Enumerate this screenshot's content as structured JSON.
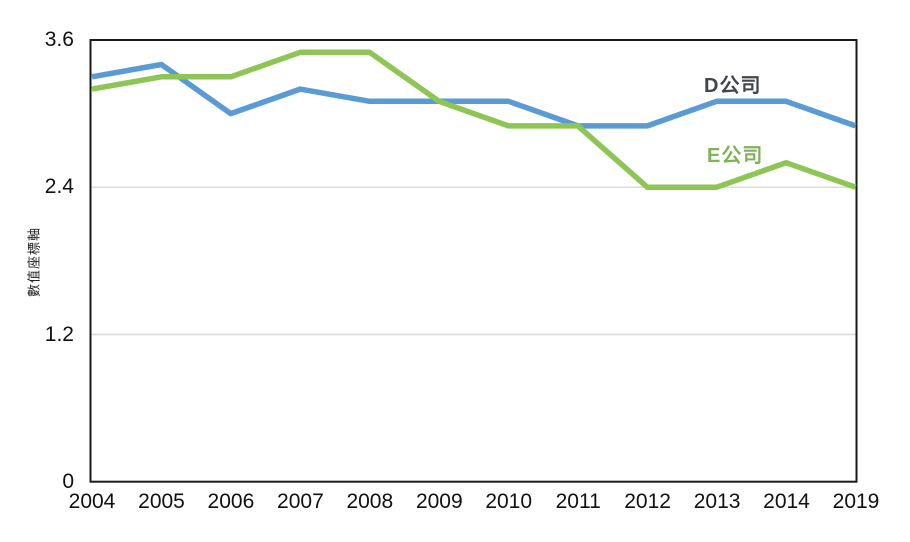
{
  "chart_data": {
    "type": "line",
    "title": "",
    "xlabel": "",
    "ylabel": "數值座標軸",
    "categories": [
      "2004",
      "2005",
      "2006",
      "2007",
      "2008",
      "2009",
      "2010",
      "2011",
      "2012",
      "2013",
      "2014",
      "2019"
    ],
    "series": [
      {
        "name": "D公司",
        "color": "#5A9BD6",
        "label_color": "#40464E",
        "values": [
          3.3,
          3.4,
          3.0,
          3.2,
          3.1,
          3.1,
          3.1,
          2.9,
          2.9,
          3.1,
          3.1,
          2.9
        ]
      },
      {
        "name": "E公司",
        "color": "#8EC655",
        "label_color": "#7FB356",
        "values": [
          3.2,
          3.3,
          3.3,
          3.5,
          3.5,
          3.1,
          2.9,
          2.9,
          2.4,
          2.4,
          2.6,
          2.4
        ]
      }
    ],
    "ylim": [
      0,
      3.6
    ],
    "yticks": [
      "0",
      "1.2",
      "2.4",
      "3.6"
    ],
    "grid": "horizontal-light",
    "legend_position": "inline-annotations"
  },
  "colors": {
    "axis_border": "#1A1A1A",
    "gridline": "#D8D8D8",
    "background": "#FFFFFF",
    "tick_text": "#111111"
  }
}
